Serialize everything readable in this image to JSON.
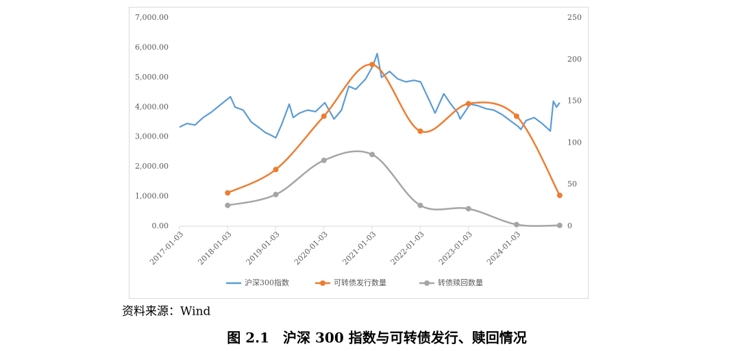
{
  "chart_data": {
    "type": "line",
    "source": "资料来源：Wind",
    "caption": "图 2.1　沪深 300 指数与可转债发行、赎回情况",
    "xlim": [
      "2017-01-03",
      "2024-12-01"
    ],
    "xticks": [
      "2017-01-03",
      "2018-01-03",
      "2019-01-03",
      "2020-01-03",
      "2021-01-03",
      "2022-01-03",
      "2023-01-03",
      "2024-01-03"
    ],
    "ylim": [
      0,
      7000
    ],
    "yticks": [
      {
        "value": 0,
        "label": "0.00"
      },
      {
        "value": 1000,
        "label": "1,000.00"
      },
      {
        "value": 2000,
        "label": "2,000.00"
      },
      {
        "value": 3000,
        "label": "3,000.00"
      },
      {
        "value": 4000,
        "label": "4,000.00"
      },
      {
        "value": 5000,
        "label": "5,000.00"
      },
      {
        "value": 6000,
        "label": "6,000.00"
      },
      {
        "value": 7000,
        "label": "7,000.00"
      }
    ],
    "y2lim": [
      0,
      250
    ],
    "y2ticks": [
      0,
      50,
      100,
      150,
      200,
      250
    ],
    "grid": false,
    "legend": "bottom",
    "series": [
      {
        "name": "沪深300指数",
        "color": "#5b9bd5",
        "smooth": false,
        "markers": false,
        "x": [
          "2017-01-03",
          "2017-03-01",
          "2017-05-01",
          "2017-07-01",
          "2017-09-01",
          "2017-11-01",
          "2018-01-24",
          "2018-03-01",
          "2018-05-01",
          "2018-07-01",
          "2018-09-01",
          "2018-10-15",
          "2018-12-01",
          "2019-01-03",
          "2019-02-15",
          "2019-04-15",
          "2019-05-15",
          "2019-07-01",
          "2019-09-01",
          "2019-11-01",
          "2020-01-10",
          "2020-03-20",
          "2020-05-15",
          "2020-07-10",
          "2020-09-01",
          "2020-11-15",
          "2021-01-10",
          "2021-02-10",
          "2021-03-15",
          "2021-05-15",
          "2021-07-15",
          "2021-09-15",
          "2021-11-15",
          "2022-01-05",
          "2022-03-15",
          "2022-04-25",
          "2022-06-30",
          "2022-08-15",
          "2022-10-15",
          "2022-11-01",
          "2023-01-15",
          "2023-03-15",
          "2023-05-15",
          "2023-07-15",
          "2023-09-15",
          "2023-11-15",
          "2024-01-15",
          "2024-02-05",
          "2024-03-15",
          "2024-05-15",
          "2024-07-15",
          "2024-09-15",
          "2024-10-08",
          "2024-11-01",
          "2024-11-25"
        ],
        "values": [
          3330,
          3450,
          3400,
          3650,
          3830,
          4050,
          4350,
          4000,
          3900,
          3500,
          3300,
          3150,
          3050,
          2970,
          3400,
          4100,
          3650,
          3800,
          3900,
          3850,
          4150,
          3600,
          3900,
          4700,
          4600,
          4950,
          5400,
          5800,
          5000,
          5200,
          4950,
          4850,
          4900,
          4850,
          4200,
          3800,
          4450,
          4150,
          3800,
          3600,
          4100,
          4050,
          3950,
          3900,
          3750,
          3550,
          3350,
          3250,
          3550,
          3650,
          3450,
          3200,
          4200,
          4000,
          4150
        ]
      },
      {
        "name": "可转债发行数量",
        "color": "#ed7d31",
        "axis": "y2",
        "smooth": true,
        "markers": true,
        "x": [
          "2018-01-03",
          "2019-01-03",
          "2020-01-03",
          "2021-01-03",
          "2022-01-03",
          "2023-01-03",
          "2024-01-03",
          "2024-11-25"
        ],
        "values": [
          40,
          68,
          132,
          194,
          114,
          147,
          132,
          37
        ]
      },
      {
        "name": "转债赎回数量",
        "color": "#a5a5a5",
        "axis": "y2",
        "smooth": true,
        "markers": true,
        "x": [
          "2018-01-03",
          "2019-01-03",
          "2020-01-03",
          "2021-01-03",
          "2022-01-03",
          "2023-01-03",
          "2024-01-03",
          "2024-11-25"
        ],
        "values": [
          25,
          38,
          79,
          86,
          25,
          21,
          2,
          1
        ]
      }
    ]
  }
}
